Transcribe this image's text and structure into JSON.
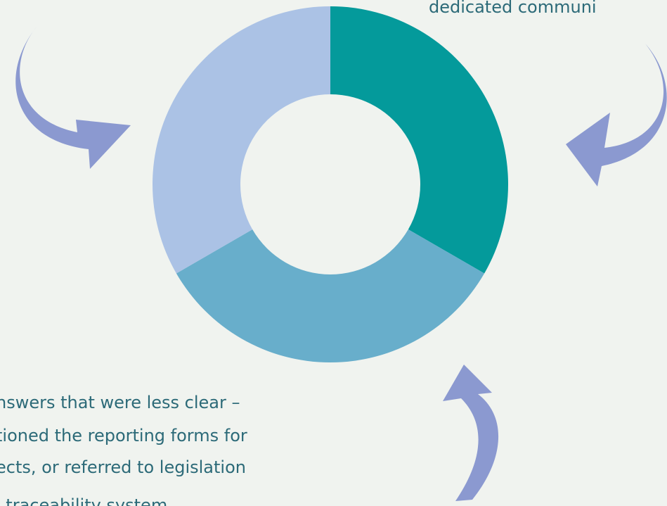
{
  "chart_data": {
    "type": "pie",
    "categories": [
      null,
      null,
      null
    ],
    "values": [
      33.3,
      33.3,
      33.3
    ],
    "colors": [
      "#049a9b",
      "#68aecb",
      "#abc2e5"
    ],
    "annotations": [
      "dedicated communi",
      "nswers that were less clear –",
      "tioned the reporting forms for",
      "ects, or referred to legislation",
      "l traceability system"
    ]
  }
}
